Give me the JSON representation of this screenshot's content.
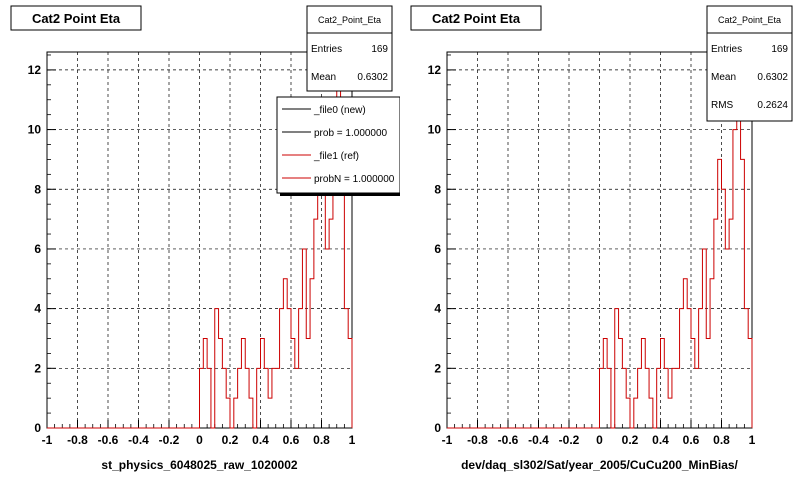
{
  "footer_text": "",
  "chart_data": [
    {
      "type": "bar",
      "title": "Cat2 Point Eta",
      "xlabel": "st_physics_6048025_raw_1020002",
      "ylabel": "",
      "xlim": [
        -1,
        1
      ],
      "ylim": [
        0,
        12.6
      ],
      "xticks": [
        "-1",
        "-0.8",
        "-0.6",
        "-0.4",
        "-0.2",
        "0",
        "0.2",
        "0.4",
        "0.6",
        "0.8",
        "1"
      ],
      "yticks": [
        "0",
        "2",
        "4",
        "6",
        "8",
        "10",
        "12"
      ],
      "grid": true,
      "histogram_bins": {
        "min": 0,
        "max": 1,
        "count": 40
      },
      "series": [
        {
          "name": "_file1 (ref)",
          "color": "#cc0000",
          "values": [
            2,
            3,
            2,
            0,
            4,
            3,
            2,
            1,
            0,
            1,
            2,
            3,
            2,
            1,
            0,
            2,
            3,
            2,
            1,
            2,
            2,
            4,
            5,
            4,
            3,
            2,
            4,
            6,
            3,
            5,
            7,
            9,
            8,
            6,
            7,
            10,
            12,
            9,
            4,
            3
          ]
        }
      ],
      "stats_box": {
        "title": "Cat2_Point_Eta",
        "rows": [
          {
            "label": "Entries",
            "value": "169"
          },
          {
            "label": "Mean",
            "value": "0.6302"
          }
        ]
      },
      "legend": {
        "position": "top-right",
        "entries": [
          {
            "label": "_file0 (new)",
            "color": "#000000"
          },
          {
            "label": "prob = 1.000000",
            "color": "#000000"
          },
          {
            "label": "_file1 (ref)",
            "color": "#cc0000"
          },
          {
            "label": "probN = 1.000000",
            "color": "#cc0000"
          }
        ]
      }
    },
    {
      "type": "bar",
      "title": "Cat2 Point Eta",
      "xlabel": "dev/daq_sl302/Sat/year_2005/CuCu200_MinBias/",
      "ylabel": "",
      "xlim": [
        -1,
        1
      ],
      "ylim": [
        0,
        12.6
      ],
      "xticks": [
        "-1",
        "-0.8",
        "-0.6",
        "-0.4",
        "-0.2",
        "0",
        "0.2",
        "0.4",
        "0.6",
        "0.8",
        "1"
      ],
      "yticks": [
        "0",
        "2",
        "4",
        "6",
        "8",
        "10",
        "12"
      ],
      "grid": true,
      "histogram_bins": {
        "min": 0,
        "max": 1,
        "count": 40
      },
      "series": [
        {
          "name": "",
          "color": "#cc0000",
          "values": [
            2,
            3,
            2,
            0,
            4,
            3,
            2,
            1,
            0,
            1,
            2,
            3,
            2,
            1,
            0,
            2,
            3,
            2,
            1,
            2,
            2,
            4,
            5,
            4,
            3,
            2,
            4,
            6,
            3,
            5,
            7,
            9,
            8,
            6,
            7,
            10,
            12,
            9,
            4,
            3
          ]
        }
      ],
      "stats_box": {
        "title": "Cat2_Point_Eta",
        "rows": [
          {
            "label": "Entries",
            "value": "169"
          },
          {
            "label": "Mean",
            "value": "0.6302"
          },
          {
            "label": "RMS",
            "value": "0.2624"
          }
        ]
      }
    }
  ]
}
